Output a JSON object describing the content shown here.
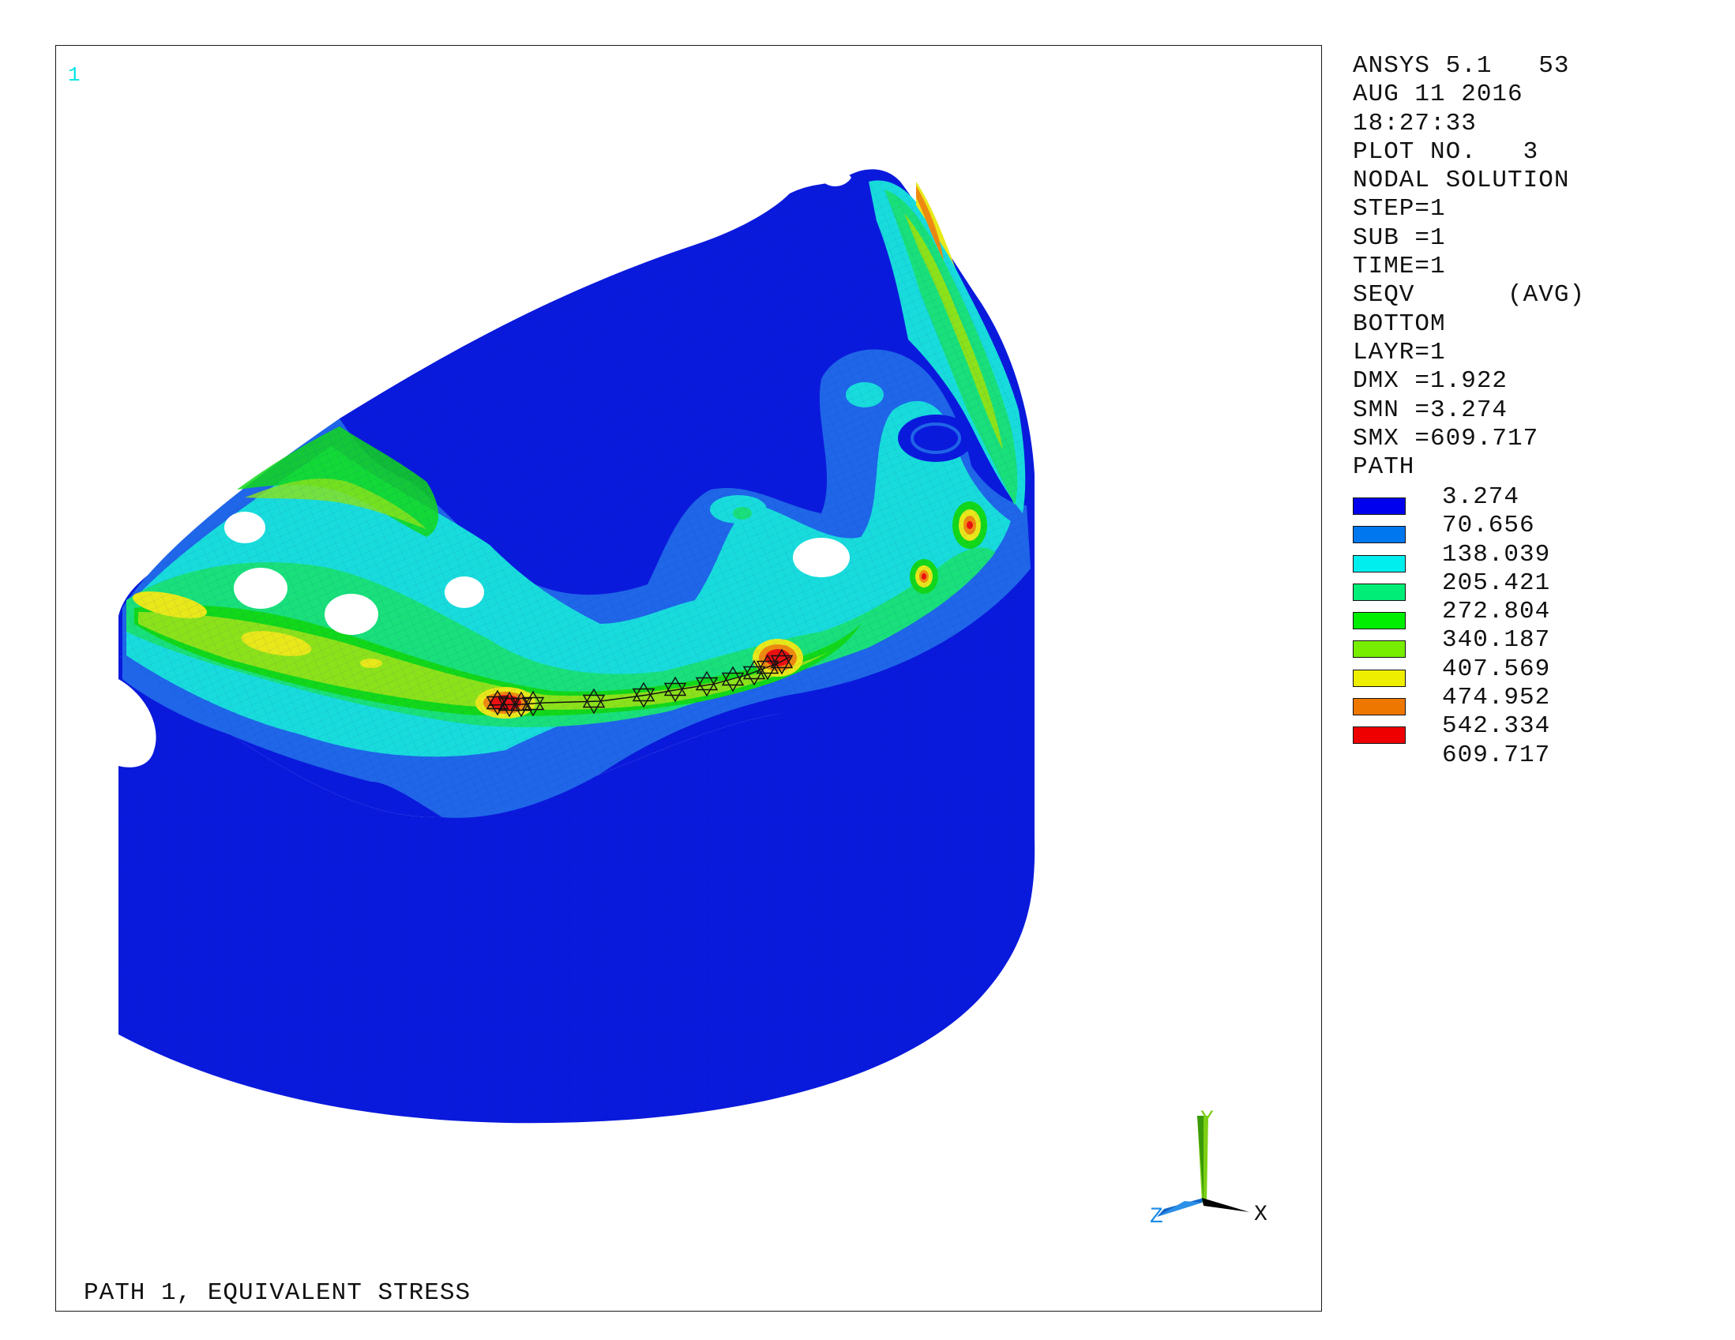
{
  "window_number": "1",
  "caption": "PATH 1, EQUIVALENT STRESS",
  "info_lines": [
    "ANSYS 5.1   53",
    "AUG 11 2016",
    "18:27:33",
    "PLOT NO.   3",
    "NODAL SOLUTION",
    "STEP=1",
    "SUB =1",
    "TIME=1",
    "SEQV      (AVG)",
    "BOTTOM",
    "LAYR=1",
    "DMX =1.922",
    "SMN =3.274",
    "SMX =609.717",
    "PATH"
  ],
  "legend": {
    "values": [
      "3.274",
      "70.656",
      "138.039",
      "205.421",
      "272.804",
      "340.187",
      "407.569",
      "474.952",
      "542.334",
      "609.717"
    ],
    "colors": [
      "#0000ee",
      "#0077ee",
      "#00eeee",
      "#00ee77",
      "#00ee00",
      "#77ee00",
      "#eeee00",
      "#ee7700",
      "#ee0000"
    ]
  },
  "triad": {
    "x_label": "X",
    "y_label": "Y",
    "z_label": "Z"
  },
  "contour_colors": {
    "deep_blue": "#0a1adc",
    "mid_blue": "#1f66e8",
    "cyan": "#18dcdc",
    "aqua_green": "#19e07a",
    "green": "#12d81a",
    "yellow_green": "#8ce21a",
    "yellow": "#e8e81a",
    "orange": "#ee8a10",
    "red": "#ee1010"
  }
}
